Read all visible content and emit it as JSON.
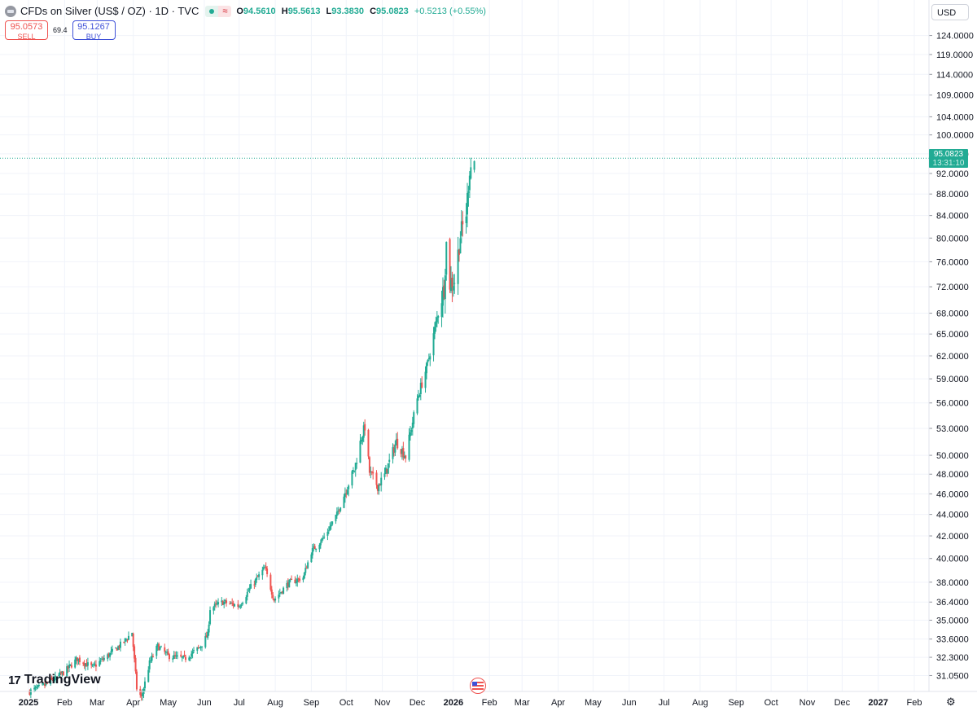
{
  "header": {
    "title": "CFDs on Silver (US$ / OZ) · 1D · TVC",
    "open_label": "O",
    "open": "94.5610",
    "high_label": "H",
    "high": "95.5613",
    "low_label": "L",
    "low": "93.3830",
    "close_label": "C",
    "close": "95.0823",
    "change": "+0.5213 (+0.55%)"
  },
  "trade": {
    "sell_price": "95.0573",
    "sell_label": "SELL",
    "spread": "69.4",
    "buy_price": "95.1267",
    "buy_label": "BUY"
  },
  "currency": "USD",
  "last_price": {
    "price": "95.0823",
    "countdown": "13:31:10"
  },
  "branding": "TradingView",
  "icons": {
    "settings": "gear-icon",
    "event": "us-flag-icon",
    "symbol": "silver-icon"
  },
  "colors": {
    "up": "#22ab94",
    "down": "#ef5350",
    "grid": "#f0f3fa"
  },
  "chart_data": {
    "type": "candlestick",
    "scale": "log",
    "ylim": [
      30.0,
      127.0
    ],
    "y_ticks": [
      "124.0000",
      "119.0000",
      "114.0000",
      "109.0000",
      "104.0000",
      "100.0000",
      "96.0000",
      "92.0000",
      "88.0000",
      "84.0000",
      "80.0000",
      "76.0000",
      "72.0000",
      "68.0000",
      "65.0000",
      "62.0000",
      "59.0000",
      "56.0000",
      "53.0000",
      "50.0000",
      "48.0000",
      "46.0000",
      "44.0000",
      "42.0000",
      "40.0000",
      "38.0000",
      "36.4000",
      "35.0000",
      "33.6000",
      "32.3000",
      "31.0500"
    ],
    "x_ticks": [
      "2025",
      "Feb",
      "Mar",
      "Apr",
      "May",
      "Jun",
      "Jul",
      "Aug",
      "Sep",
      "Oct",
      "Nov",
      "Dec",
      "2026",
      "Feb",
      "Mar",
      "Apr",
      "May",
      "Jun",
      "Jul",
      "Aug",
      "Sep",
      "Oct",
      "Nov",
      "Dec",
      "2027",
      "Feb"
    ],
    "x_tick_dates": [
      "2025-01-01",
      "2025-02-01",
      "2025-03-01",
      "2025-04-01",
      "2025-05-01",
      "2025-06-01",
      "2025-07-01",
      "2025-08-01",
      "2025-09-01",
      "2025-10-01",
      "2025-11-01",
      "2025-12-01",
      "2026-01-01",
      "2026-02-01",
      "2026-03-01",
      "2026-04-01",
      "2026-05-01",
      "2026-06-01",
      "2026-07-01",
      "2026-08-01",
      "2026-09-01",
      "2026-10-01",
      "2026-11-01",
      "2026-12-01",
      "2027-01-01",
      "2027-02-01"
    ],
    "bold_ticks": [
      "2025",
      "2026",
      "2027"
    ],
    "grid": true,
    "last_price": 95.0823,
    "close_path": [
      [
        "2025-01-02",
        30.0
      ],
      [
        "2025-01-15",
        30.4
      ],
      [
        "2025-02-01",
        31.3
      ],
      [
        "2025-02-12",
        32.2
      ],
      [
        "2025-02-25",
        31.6
      ],
      [
        "2025-03-10",
        32.4
      ],
      [
        "2025-03-24",
        33.4
      ],
      [
        "2025-03-31",
        34.1
      ],
      [
        "2025-04-04",
        30.2
      ],
      [
        "2025-04-08",
        29.6
      ],
      [
        "2025-04-15",
        31.9
      ],
      [
        "2025-04-22",
        33.1
      ],
      [
        "2025-05-01",
        32.4
      ],
      [
        "2025-05-15",
        32.2
      ],
      [
        "2025-05-28",
        33.0
      ],
      [
        "2025-06-04",
        33.9
      ],
      [
        "2025-06-06",
        35.9
      ],
      [
        "2025-06-17",
        36.4
      ],
      [
        "2025-07-01",
        36.1
      ],
      [
        "2025-07-11",
        37.6
      ],
      [
        "2025-07-23",
        39.2
      ],
      [
        "2025-07-31",
        36.6
      ],
      [
        "2025-08-12",
        37.9
      ],
      [
        "2025-08-25",
        38.4
      ],
      [
        "2025-09-01",
        40.6
      ],
      [
        "2025-09-12",
        41.9
      ],
      [
        "2025-09-23",
        44.0
      ],
      [
        "2025-10-01",
        46.5
      ],
      [
        "2025-10-08",
        48.5
      ],
      [
        "2025-10-14",
        52.0
      ],
      [
        "2025-10-17",
        53.2
      ],
      [
        "2025-10-21",
        48.2
      ],
      [
        "2025-10-28",
        46.8
      ],
      [
        "2025-11-03",
        47.9
      ],
      [
        "2025-11-13",
        51.5
      ],
      [
        "2025-11-21",
        49.9
      ],
      [
        "2025-12-01",
        56.5
      ],
      [
        "2025-12-10",
        61.0
      ],
      [
        "2025-12-17",
        66.5
      ],
      [
        "2025-12-24",
        72.0
      ],
      [
        "2025-12-26",
        79.0
      ],
      [
        "2025-12-29",
        72.5
      ],
      [
        "2026-01-02",
        73.0
      ],
      [
        "2026-01-07",
        80.5
      ],
      [
        "2026-01-12",
        84.5
      ],
      [
        "2026-01-15",
        93.0
      ],
      [
        "2026-01-20",
        95.0823
      ]
    ]
  }
}
